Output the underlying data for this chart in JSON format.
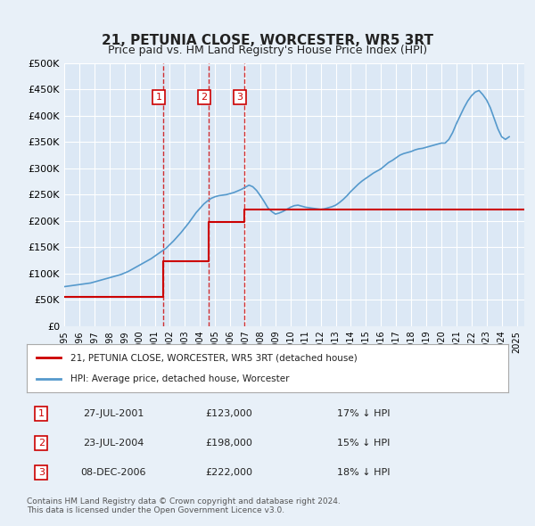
{
  "title": "21, PETUNIA CLOSE, WORCESTER, WR5 3RT",
  "subtitle": "Price paid vs. HM Land Registry's House Price Index (HPI)",
  "legend_label_red": "21, PETUNIA CLOSE, WORCESTER, WR5 3RT (detached house)",
  "legend_label_blue": "HPI: Average price, detached house, Worcester",
  "footer_line1": "Contains HM Land Registry data © Crown copyright and database right 2024.",
  "footer_line2": "This data is licensed under the Open Government Licence v3.0.",
  "ylim": [
    0,
    500000
  ],
  "yticks": [
    0,
    50000,
    100000,
    150000,
    200000,
    250000,
    300000,
    350000,
    400000,
    450000,
    500000
  ],
  "ytick_labels": [
    "£0",
    "£50K",
    "£100K",
    "£150K",
    "£200K",
    "£250K",
    "£300K",
    "£350K",
    "£400K",
    "£450K",
    "£500K"
  ],
  "xlim_start": 1995.0,
  "xlim_end": 2025.5,
  "sales": [
    {
      "label": "1",
      "date_str": "27-JUL-2001",
      "year": 2001.57,
      "price": 123000,
      "hpi_diff": "17% ↓ HPI"
    },
    {
      "label": "2",
      "date_str": "23-JUL-2004",
      "year": 2004.56,
      "price": 198000,
      "hpi_diff": "15% ↓ HPI"
    },
    {
      "label": "3",
      "date_str": "08-DEC-2006",
      "year": 2006.94,
      "price": 222000,
      "hpi_diff": "18% ↓ HPI"
    }
  ],
  "red_line": {
    "x": [
      1995.0,
      2001.57,
      2001.57,
      2004.56,
      2004.56,
      2006.94,
      2006.94,
      2025.5
    ],
    "y": [
      55000,
      55000,
      123000,
      123000,
      198000,
      198000,
      222000,
      222000
    ]
  },
  "hpi_line": {
    "x": [
      1995.0,
      1995.25,
      1995.5,
      1995.75,
      1996.0,
      1996.25,
      1996.5,
      1996.75,
      1997.0,
      1997.25,
      1997.5,
      1997.75,
      1998.0,
      1998.25,
      1998.5,
      1998.75,
      1999.0,
      1999.25,
      1999.5,
      1999.75,
      2000.0,
      2000.25,
      2000.5,
      2000.75,
      2001.0,
      2001.25,
      2001.5,
      2001.75,
      2002.0,
      2002.25,
      2002.5,
      2002.75,
      2003.0,
      2003.25,
      2003.5,
      2003.75,
      2004.0,
      2004.25,
      2004.5,
      2004.75,
      2005.0,
      2005.25,
      2005.5,
      2005.75,
      2006.0,
      2006.25,
      2006.5,
      2006.75,
      2007.0,
      2007.25,
      2007.5,
      2007.75,
      2008.0,
      2008.25,
      2008.5,
      2008.75,
      2009.0,
      2009.25,
      2009.5,
      2009.75,
      2010.0,
      2010.25,
      2010.5,
      2010.75,
      2011.0,
      2011.25,
      2011.5,
      2011.75,
      2012.0,
      2012.25,
      2012.5,
      2012.75,
      2013.0,
      2013.25,
      2013.5,
      2013.75,
      2014.0,
      2014.25,
      2014.5,
      2014.75,
      2015.0,
      2015.25,
      2015.5,
      2015.75,
      2016.0,
      2016.25,
      2016.5,
      2016.75,
      2017.0,
      2017.25,
      2017.5,
      2017.75,
      2018.0,
      2018.25,
      2018.5,
      2018.75,
      2019.0,
      2019.25,
      2019.5,
      2019.75,
      2020.0,
      2020.25,
      2020.5,
      2020.75,
      2021.0,
      2021.25,
      2021.5,
      2021.75,
      2022.0,
      2022.25,
      2022.5,
      2022.75,
      2023.0,
      2023.25,
      2023.5,
      2023.75,
      2024.0,
      2024.25,
      2024.5
    ],
    "y": [
      75000,
      76000,
      77000,
      78000,
      79000,
      80000,
      81000,
      82000,
      84000,
      86000,
      88000,
      90000,
      92000,
      94000,
      96000,
      98000,
      101000,
      104000,
      108000,
      112000,
      116000,
      120000,
      124000,
      128000,
      133000,
      138000,
      143000,
      148000,
      155000,
      162000,
      170000,
      178000,
      187000,
      196000,
      206000,
      216000,
      224000,
      232000,
      238000,
      243000,
      246000,
      248000,
      249000,
      250000,
      252000,
      254000,
      257000,
      260000,
      264000,
      268000,
      265000,
      258000,
      248000,
      237000,
      225000,
      218000,
      213000,
      215000,
      218000,
      222000,
      226000,
      229000,
      230000,
      228000,
      226000,
      225000,
      224000,
      223000,
      222000,
      223000,
      225000,
      227000,
      230000,
      235000,
      241000,
      248000,
      256000,
      263000,
      270000,
      276000,
      281000,
      286000,
      291000,
      295000,
      299000,
      305000,
      311000,
      315000,
      320000,
      325000,
      328000,
      330000,
      332000,
      335000,
      337000,
      338000,
      340000,
      342000,
      344000,
      346000,
      348000,
      348000,
      355000,
      368000,
      385000,
      400000,
      415000,
      428000,
      438000,
      445000,
      448000,
      440000,
      430000,
      415000,
      395000,
      375000,
      360000,
      355000,
      360000
    ]
  },
  "background_color": "#e8f0f8",
  "plot_bg_color": "#dce8f5",
  "red_color": "#cc0000",
  "blue_color": "#5599cc",
  "grid_color": "#ffffff",
  "box_color": "#cc0000"
}
